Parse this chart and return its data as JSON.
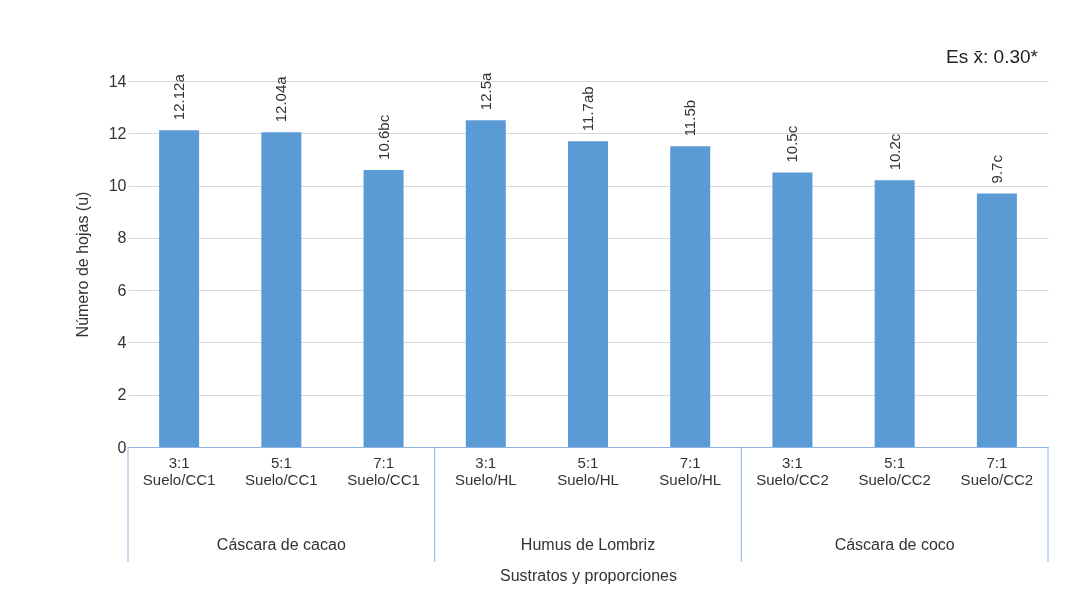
{
  "chart_data": {
    "type": "bar",
    "xlabel": "Sustratos y proporciones",
    "ylabel": "Número de hojas (u)",
    "categories": [
      "3:1\nSuelo/CC1",
      "5:1\nSuelo/CC1",
      "7:1\nSuelo/CC1",
      "3:1\nSuelo/HL",
      "5:1\nSuelo/HL",
      "7:1\nSuelo/HL",
      "3:1\nSuelo/CC2",
      "5:1\nSuelo/CC2",
      "7:1\nSuelo/CC2"
    ],
    "values": [
      12.12,
      12.04,
      10.6,
      12.5,
      11.7,
      11.5,
      10.5,
      10.2,
      9.7
    ],
    "value_labels": [
      "12.12a",
      "12.04a",
      "10.6bc",
      "12.5a",
      "11.7ab",
      "11.5b",
      "10.5c",
      "10.2c",
      "9.7c"
    ],
    "color": "#5b9bd5",
    "ylim": [
      0,
      14
    ],
    "yticks": [
      0,
      2,
      4,
      6,
      8,
      10,
      12,
      14
    ],
    "grid": "y",
    "annotations": [
      "Cáscara de cacao",
      "Humus de Lombriz",
      "Cáscara de coco",
      "Es x̄: 0.30*"
    ]
  }
}
